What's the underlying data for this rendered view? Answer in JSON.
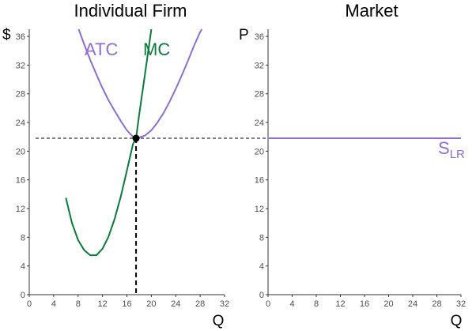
{
  "colors": {
    "atc": "#8c6fd0",
    "mc": "#0a7a3a",
    "supply": "#8c6fd0",
    "axis": "#333333",
    "dashed": "#000000"
  },
  "chart_data": [
    {
      "type": "line",
      "title": "Individual Firm",
      "ylabel": "$",
      "xlabel": "Q",
      "xlim": [
        0,
        32
      ],
      "ylim": [
        0,
        37
      ],
      "x_ticks": [
        0,
        4,
        8,
        12,
        16,
        20,
        24,
        28,
        32
      ],
      "y_ticks": [
        0,
        4,
        8,
        12,
        16,
        20,
        24,
        28,
        32,
        36
      ],
      "grid": false,
      "series": [
        {
          "name": "ATC",
          "x": [
            8.1,
            9,
            10,
            11,
            12,
            13,
            14,
            15,
            16,
            17,
            17.5,
            18,
            19,
            20,
            21,
            22,
            23,
            24,
            25,
            26,
            27,
            28,
            28.3
          ],
          "y": [
            37,
            34.9,
            32.7,
            30.7,
            28.8,
            27.1,
            25.6,
            24.2,
            22.9,
            22.0,
            21.8,
            21.9,
            22.2,
            22.9,
            24.0,
            25.3,
            26.9,
            28.7,
            30.6,
            32.6,
            34.7,
            36.6,
            37
          ]
        },
        {
          "name": "MC",
          "x": [
            6,
            7,
            8,
            9,
            10,
            11,
            12,
            13,
            14,
            15,
            16,
            17,
            17.5,
            18,
            19,
            20
          ],
          "y": [
            13.5,
            10.0,
            7.6,
            6.2,
            5.5,
            5.5,
            6.4,
            8.1,
            10.6,
            13.7,
            17.3,
            21.0,
            21.8,
            25.0,
            31.0,
            37.0
          ]
        }
      ],
      "equilibrium": {
        "x": 17.5,
        "y": 21.8
      },
      "annotations": [
        "ATC",
        "MC"
      ]
    },
    {
      "type": "line",
      "title": "Market",
      "ylabel": "P",
      "xlabel": "Q",
      "xlim": [
        0,
        32
      ],
      "ylim": [
        0,
        37
      ],
      "x_ticks": [
        0,
        4,
        8,
        12,
        16,
        20,
        24,
        28,
        32
      ],
      "y_ticks": [
        0,
        4,
        8,
        12,
        16,
        20,
        24,
        28,
        32,
        36
      ],
      "grid": false,
      "series": [
        {
          "name": "SLR",
          "x": [
            0,
            32
          ],
          "y": [
            21.8,
            21.8
          ]
        }
      ],
      "label_main": "S",
      "label_sub": "LR"
    }
  ]
}
